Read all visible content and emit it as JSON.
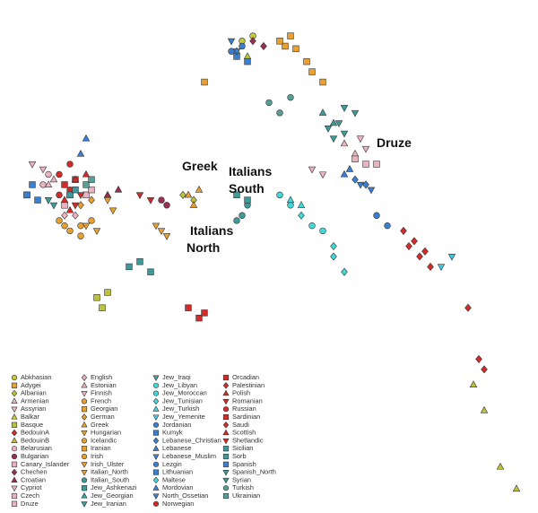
{
  "chart_data": {
    "type": "scatter",
    "xlim": [
      0,
      100
    ],
    "ylim": [
      0,
      100
    ],
    "annotations": [
      {
        "lines": [
          "Greek"
        ]
      },
      {
        "lines": [
          "Italians",
          "South"
        ]
      },
      {
        "lines": [
          "Italians",
          "North"
        ]
      },
      {
        "lines": [
          "Druze"
        ]
      }
    ],
    "series": [
      {
        "name": "Abkhasian",
        "color": "#c8c83a",
        "marker": "circle",
        "x": [
          45,
          47
        ],
        "y": [
          92,
          93
        ]
      },
      {
        "name": "Adygei",
        "color": "#e8a030",
        "marker": "square",
        "x": [
          53,
          55,
          38
        ],
        "y": [
          91,
          90.5,
          84
        ]
      },
      {
        "name": "Albanian",
        "color": "#bcc23a",
        "marker": "diamond",
        "x": [
          34,
          36
        ],
        "y": [
          62,
          61
        ]
      },
      {
        "name": "Armenian",
        "color": "#e8b4c0",
        "marker": "triangle-up",
        "x": [
          64,
          66
        ],
        "y": [
          72,
          70
        ]
      },
      {
        "name": "Assyrian",
        "color": "#e8b4c0",
        "marker": "triangle-down",
        "x": [
          67,
          68
        ],
        "y": [
          73,
          71
        ]
      },
      {
        "name": "Balkar",
        "color": "#bcc23a",
        "marker": "triangle-up",
        "x": [
          44,
          46
        ],
        "y": [
          90,
          89
        ]
      },
      {
        "name": "Basque",
        "color": "#bcc23a",
        "marker": "square",
        "x": [
          18,
          19,
          20
        ],
        "y": [
          42,
          40,
          43
        ]
      },
      {
        "name": "BedouinA",
        "color": "#d42a2a",
        "marker": "diamond",
        "x": [
          78,
          80,
          76
        ],
        "y": [
          50,
          48,
          52
        ]
      },
      {
        "name": "BedouinB",
        "color": "#bcc23a",
        "marker": "triangle-up",
        "x": [
          93,
          96,
          88,
          90
        ],
        "y": [
          9,
          4.7,
          25,
          20
        ]
      },
      {
        "name": "Belarusian",
        "color": "#e8b4c0",
        "marker": "circle",
        "x": [
          8,
          9
        ],
        "y": [
          64,
          66
        ]
      },
      {
        "name": "Bulgarian",
        "color": "#9a3050",
        "marker": "circle",
        "x": [
          30,
          31
        ],
        "y": [
          61,
          60
        ]
      },
      {
        "name": "Canary_Islander",
        "color": "#e8b4c0",
        "marker": "square",
        "x": [
          16,
          17
        ],
        "y": [
          62,
          63
        ]
      },
      {
        "name": "Chechen",
        "color": "#9a3050",
        "marker": "diamond",
        "x": [
          47,
          49
        ],
        "y": [
          92,
          91
        ]
      },
      {
        "name": "Croatian",
        "color": "#9a3050",
        "marker": "triangle-up",
        "x": [
          20,
          22
        ],
        "y": [
          62,
          63
        ]
      },
      {
        "name": "Cypriot",
        "color": "#e8b4c0",
        "marker": "triangle-down",
        "x": [
          58,
          60
        ],
        "y": [
          67,
          66
        ]
      },
      {
        "name": "Czech",
        "color": "#e8b4c0",
        "marker": "square",
        "x": [
          12,
          13
        ],
        "y": [
          60,
          62
        ]
      },
      {
        "name": "Druze",
        "color": "#e8b4c0",
        "marker": "square",
        "x": [
          66,
          68,
          70
        ],
        "y": [
          69,
          68,
          68
        ]
      },
      {
        "name": "English",
        "color": "#e8b4c0",
        "marker": "diamond",
        "x": [
          12,
          14
        ],
        "y": [
          58,
          58
        ]
      },
      {
        "name": "Estonian",
        "color": "#e8b4c0",
        "marker": "triangle-up",
        "x": [
          9,
          10
        ],
        "y": [
          64,
          65
        ]
      },
      {
        "name": "Finnish",
        "color": "#e8b4c0",
        "marker": "triangle-down",
        "x": [
          6,
          8
        ],
        "y": [
          68,
          67
        ]
      },
      {
        "name": "French",
        "color": "#e8a030",
        "marker": "circle",
        "x": [
          15,
          17
        ],
        "y": [
          56,
          57
        ]
      },
      {
        "name": "Georgian",
        "color": "#e8a030",
        "marker": "square",
        "x": [
          54,
          52
        ],
        "y": [
          93,
          92
        ]
      },
      {
        "name": "German",
        "color": "#e8a030",
        "marker": "diamond",
        "x": [
          15,
          17
        ],
        "y": [
          60,
          61
        ]
      },
      {
        "name": "Greek",
        "color": "#e8a030",
        "marker": "triangle-up",
        "x": [
          35,
          37,
          36
        ],
        "y": [
          62,
          63,
          60
        ]
      },
      {
        "name": "Hungarian",
        "color": "#e8a030",
        "marker": "triangle-down",
        "x": [
          20,
          21
        ],
        "y": [
          61,
          59
        ]
      },
      {
        "name": "Icelandic",
        "color": "#e8a030",
        "marker": "circle",
        "x": [
          11,
          12
        ],
        "y": [
          57,
          56
        ]
      },
      {
        "name": "Iranian",
        "color": "#e8a030",
        "marker": "square",
        "x": [
          58,
          60,
          57
        ],
        "y": [
          86,
          84,
          88
        ]
      },
      {
        "name": "Irish",
        "color": "#e8a030",
        "marker": "circle",
        "x": [
          13,
          15
        ],
        "y": [
          55,
          54
        ]
      },
      {
        "name": "Irish_Ulster",
        "color": "#e8a030",
        "marker": "triangle-down",
        "x": [
          16,
          18
        ],
        "y": [
          56,
          55
        ]
      },
      {
        "name": "Italian_North",
        "color": "#e8a030",
        "marker": "triangle-down",
        "x": [
          30,
          31,
          29
        ],
        "y": [
          55,
          54,
          56
        ]
      },
      {
        "name": "Italian_South",
        "color": "#3f9a9a",
        "marker": "circle",
        "x": [
          45,
          46,
          44
        ],
        "y": [
          58,
          60,
          57
        ]
      },
      {
        "name": "Jew_Ashkenazi",
        "color": "#3f9a9a",
        "marker": "square",
        "x": [
          24,
          26,
          28
        ],
        "y": [
          48,
          49,
          47
        ]
      },
      {
        "name": "Jew_Georgian",
        "color": "#3f9a9a",
        "marker": "triangle-up",
        "x": [
          62,
          60
        ],
        "y": [
          76,
          78
        ]
      },
      {
        "name": "Jew_Iranian",
        "color": "#3f9a9a",
        "marker": "triangle-down",
        "x": [
          64,
          62
        ],
        "y": [
          74,
          73
        ]
      },
      {
        "name": "Jew_Iraqi",
        "color": "#3f9a9a",
        "marker": "triangle-down",
        "x": [
          61,
          63
        ],
        "y": [
          75,
          76
        ]
      },
      {
        "name": "Jew_Libyan",
        "color": "#40d8d8",
        "marker": "circle",
        "x": [
          52,
          54
        ],
        "y": [
          62,
          60
        ]
      },
      {
        "name": "Jew_Moroccan",
        "color": "#40d8d8",
        "marker": "circle",
        "x": [
          58,
          60
        ],
        "y": [
          56,
          55
        ]
      },
      {
        "name": "Jew_Tunisian",
        "color": "#40d8d8",
        "marker": "diamond",
        "x": [
          56,
          62
        ],
        "y": [
          58,
          52
        ]
      },
      {
        "name": "Jew_Turkish",
        "color": "#40d8d8",
        "marker": "triangle-up",
        "x": [
          54,
          56
        ],
        "y": [
          61,
          60
        ]
      },
      {
        "name": "Jew_Yemenite",
        "color": "#40c8e0",
        "marker": "triangle-down",
        "x": [
          84,
          82
        ],
        "y": [
          50,
          48
        ]
      },
      {
        "name": "Jordanian",
        "color": "#3a7fd0",
        "marker": "circle",
        "x": [
          70,
          72
        ],
        "y": [
          58,
          56
        ]
      },
      {
        "name": "Kumyk",
        "color": "#3a7fd0",
        "marker": "square",
        "x": [
          44,
          46
        ],
        "y": [
          89,
          88
        ]
      },
      {
        "name": "Lebanese_Christian",
        "color": "#3a7fd0",
        "marker": "diamond",
        "x": [
          66,
          68
        ],
        "y": [
          65,
          64
        ]
      },
      {
        "name": "Lebanese",
        "color": "#3a7fd0",
        "marker": "triangle-up",
        "x": [
          64,
          65
        ],
        "y": [
          66,
          67
        ]
      },
      {
        "name": "Lebanese_Muslim",
        "color": "#3a7fd0",
        "marker": "triangle-down",
        "x": [
          67,
          69
        ],
        "y": [
          64,
          63
        ]
      },
      {
        "name": "Lezgin",
        "color": "#3a7fd0",
        "marker": "circle",
        "x": [
          45,
          43
        ],
        "y": [
          91,
          90
        ]
      },
      {
        "name": "Lithuanian",
        "color": "#3a7fd0",
        "marker": "square",
        "x": [
          6,
          5
        ],
        "y": [
          64,
          62
        ]
      },
      {
        "name": "Maltese",
        "color": "#40d8d8",
        "marker": "diamond",
        "x": [
          62,
          64
        ],
        "y": [
          50,
          47
        ]
      },
      {
        "name": "Mordovian",
        "color": "#3a7fd0",
        "marker": "triangle-up",
        "x": [
          15,
          16
        ],
        "y": [
          70,
          73
        ]
      },
      {
        "name": "North_Ossetian",
        "color": "#3a7fd0",
        "marker": "triangle-down",
        "x": [
          43,
          44
        ],
        "y": [
          92,
          90
        ]
      },
      {
        "name": "Norwegian",
        "color": "#d42a2a",
        "marker": "circle",
        "x": [
          11,
          13
        ],
        "y": [
          62,
          63
        ]
      },
      {
        "name": "Orcadian",
        "color": "#d42a2a",
        "marker": "square",
        "x": [
          12,
          14
        ],
        "y": [
          64,
          65
        ]
      },
      {
        "name": "Palestinian",
        "color": "#d42a2a",
        "marker": "diamond",
        "x": [
          75,
          77,
          79
        ],
        "y": [
          55,
          53,
          51
        ]
      },
      {
        "name": "Polish",
        "color": "#d42a2a",
        "marker": "triangle-up",
        "x": [
          14,
          16
        ],
        "y": [
          65,
          66
        ]
      },
      {
        "name": "Romanian",
        "color": "#d42a2a",
        "marker": "triangle-down",
        "x": [
          26,
          28
        ],
        "y": [
          62,
          61
        ]
      },
      {
        "name": "Russian",
        "color": "#d42a2a",
        "marker": "circle",
        "x": [
          11,
          13
        ],
        "y": [
          66,
          68
        ]
      },
      {
        "name": "Sardinian",
        "color": "#d42a2a",
        "marker": "square",
        "x": [
          35,
          37,
          38
        ],
        "y": [
          40,
          38,
          39
        ]
      },
      {
        "name": "Saudi",
        "color": "#d42a2a",
        "marker": "diamond",
        "x": [
          87,
          89,
          90
        ],
        "y": [
          40,
          30,
          28
        ]
      },
      {
        "name": "Scottish",
        "color": "#d42a2a",
        "marker": "triangle-up",
        "x": [
          12,
          13
        ],
        "y": [
          61,
          59
        ]
      },
      {
        "name": "Shetlandic",
        "color": "#d42a2a",
        "marker": "triangle-down",
        "x": [
          14,
          15
        ],
        "y": [
          60,
          62
        ]
      },
      {
        "name": "Sicilian",
        "color": "#3f9a9a",
        "marker": "square",
        "x": [
          46,
          44
        ],
        "y": [
          61,
          62
        ]
      },
      {
        "name": "Sorb",
        "color": "#3f9a9a",
        "marker": "square",
        "x": [
          13,
          14
        ],
        "y": [
          62,
          63
        ]
      },
      {
        "name": "Spanish",
        "color": "#3a7fd0",
        "marker": "square",
        "x": [
          5,
          7
        ],
        "y": [
          62,
          61
        ]
      },
      {
        "name": "Spanish_North",
        "color": "#3f9a9a",
        "marker": "triangle-down",
        "x": [
          9,
          10
        ],
        "y": [
          61,
          60
        ]
      },
      {
        "name": "Syrian",
        "color": "#3f9a9a",
        "marker": "triangle-down",
        "x": [
          64,
          66
        ],
        "y": [
          79,
          78
        ]
      },
      {
        "name": "Turkish",
        "color": "#5a9e98",
        "marker": "circle",
        "x": [
          50,
          52,
          54
        ],
        "y": [
          80,
          78,
          81
        ]
      },
      {
        "name": "Ukrainian",
        "color": "#5a9e98",
        "marker": "square",
        "x": [
          16,
          17
        ],
        "y": [
          64,
          65
        ]
      }
    ]
  }
}
